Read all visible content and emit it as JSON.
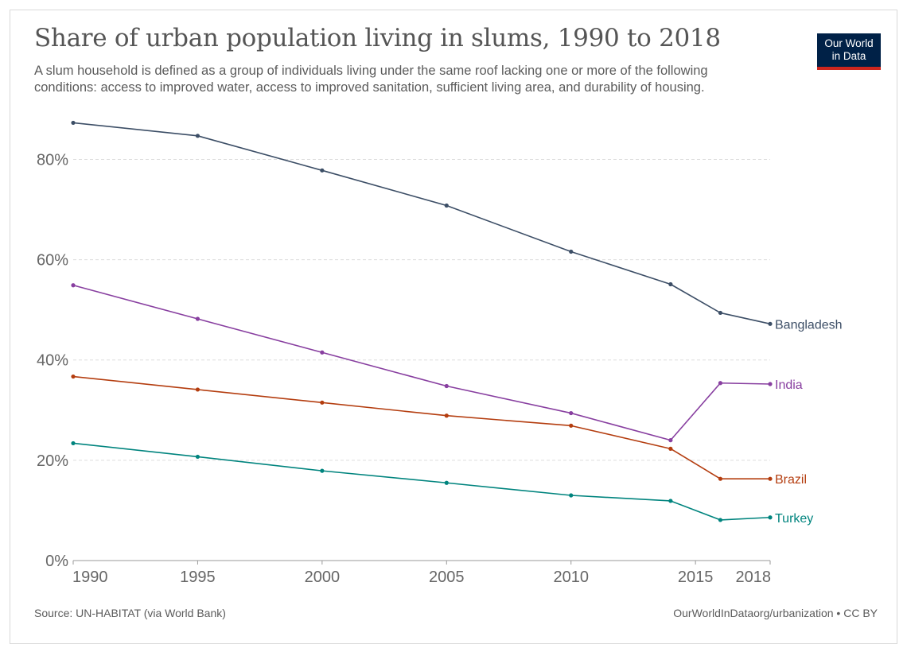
{
  "header": {
    "title": "Share of urban population living in slums, 1990 to 2018",
    "subtitle": "A slum household is defined as a group of individuals living under the same roof lacking one or more of the following conditions: access to improved water, access to improved sanitation, sufficient living area, and durability of housing."
  },
  "logo": {
    "line1": "Our World",
    "line2": "in Data",
    "bg_color": "#002147",
    "accent_color": "#ce261e"
  },
  "footer": {
    "source": "Source: UN-HABITAT (via World Bank)",
    "credit": "OurWorldInDataorg/urbanization • CC BY"
  },
  "chart_data": {
    "type": "line",
    "title": "Share of urban population living in slums, 1990 to 2018",
    "xlabel": "",
    "ylabel": "",
    "xlim": [
      1990,
      2018
    ],
    "ylim": [
      0,
      88
    ],
    "x_ticks": [
      1990,
      1995,
      2000,
      2005,
      2010,
      2015,
      2018
    ],
    "y_ticks": [
      0,
      20,
      40,
      60,
      80
    ],
    "y_tick_labels": [
      "0%",
      "20%",
      "40%",
      "60%",
      "80%"
    ],
    "grid": "horizontal dashed",
    "legend": "inline labels at line ends",
    "x": [
      1990,
      1995,
      2000,
      2005,
      2010,
      2014,
      2016,
      2018
    ],
    "series": [
      {
        "name": "Bangladesh",
        "color": "#3c4e66",
        "values": [
          87.3,
          84.7,
          77.8,
          70.8,
          61.6,
          55.1,
          49.4,
          47.2
        ]
      },
      {
        "name": "India",
        "color": "#883fa0",
        "values": [
          54.9,
          48.2,
          41.5,
          34.8,
          29.4,
          24.0,
          35.4,
          35.2
        ]
      },
      {
        "name": "Brazil",
        "color": "#b43d0f",
        "values": [
          36.7,
          34.1,
          31.5,
          28.9,
          26.9,
          22.3,
          16.3,
          16.3
        ]
      },
      {
        "name": "Turkey",
        "color": "#00847e",
        "values": [
          23.4,
          20.7,
          17.9,
          15.5,
          13.0,
          11.9,
          8.1,
          8.6
        ]
      }
    ]
  }
}
